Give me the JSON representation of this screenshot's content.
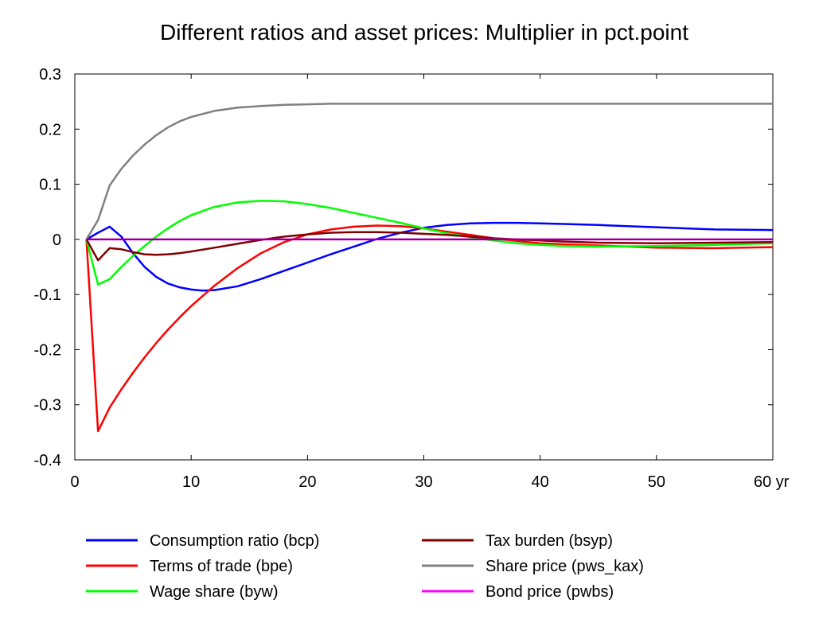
{
  "chart_data": {
    "type": "line",
    "title": "Different ratios and asset prices: Multiplier in pct.point",
    "xlabel": "",
    "ylabel": "",
    "xlim": [
      0,
      60
    ],
    "ylim": [
      -0.4,
      0.3
    ],
    "x_ticks": [
      {
        "value": 0,
        "label": "0"
      },
      {
        "value": 10,
        "label": "10"
      },
      {
        "value": 20,
        "label": "20"
      },
      {
        "value": 30,
        "label": "30"
      },
      {
        "value": 40,
        "label": "40"
      },
      {
        "value": 50,
        "label": "50"
      },
      {
        "value": 60,
        "label": "60 yr"
      }
    ],
    "y_ticks": [
      {
        "value": 0.3,
        "label": "0.3"
      },
      {
        "value": 0.2,
        "label": "0.2"
      },
      {
        "value": 0.1,
        "label": "0.1"
      },
      {
        "value": 0,
        "label": "0"
      },
      {
        "value": -0.1,
        "label": "-0.1"
      },
      {
        "value": -0.2,
        "label": "-0.2"
      },
      {
        "value": -0.3,
        "label": "-0.3"
      },
      {
        "value": -0.4,
        "label": "-0.4"
      }
    ],
    "grid": false,
    "legend_position": "bottom",
    "series": [
      {
        "name": "Consumption ratio (bcp)",
        "color": "#0000ff",
        "points": [
          [
            1,
            0
          ],
          [
            2,
            0.012
          ],
          [
            3,
            0.023
          ],
          [
            4,
            0.005
          ],
          [
            5,
            -0.025
          ],
          [
            6,
            -0.05
          ],
          [
            7,
            -0.068
          ],
          [
            8,
            -0.08
          ],
          [
            9,
            -0.087
          ],
          [
            10,
            -0.091
          ],
          [
            11,
            -0.093
          ],
          [
            12,
            -0.092
          ],
          [
            14,
            -0.085
          ],
          [
            16,
            -0.072
          ],
          [
            18,
            -0.057
          ],
          [
            20,
            -0.042
          ],
          [
            22,
            -0.027
          ],
          [
            24,
            -0.013
          ],
          [
            26,
            0.001
          ],
          [
            28,
            0.012
          ],
          [
            30,
            0.021
          ],
          [
            32,
            0.026
          ],
          [
            34,
            0.029
          ],
          [
            36,
            0.03
          ],
          [
            38,
            0.03
          ],
          [
            40,
            0.029
          ],
          [
            42,
            0.028
          ],
          [
            45,
            0.026
          ],
          [
            50,
            0.022
          ],
          [
            55,
            0.018
          ],
          [
            60,
            0.017
          ]
        ]
      },
      {
        "name": "Terms of trade (bpe)",
        "color": "#ff0000",
        "points": [
          [
            1,
            0
          ],
          [
            2,
            -0.348
          ],
          [
            3,
            -0.305
          ],
          [
            4,
            -0.272
          ],
          [
            5,
            -0.242
          ],
          [
            6,
            -0.214
          ],
          [
            7,
            -0.188
          ],
          [
            8,
            -0.164
          ],
          [
            9,
            -0.142
          ],
          [
            10,
            -0.121
          ],
          [
            12,
            -0.084
          ],
          [
            14,
            -0.052
          ],
          [
            16,
            -0.025
          ],
          [
            18,
            -0.005
          ],
          [
            20,
            0.009
          ],
          [
            22,
            0.018
          ],
          [
            24,
            0.023
          ],
          [
            26,
            0.025
          ],
          [
            28,
            0.024
          ],
          [
            30,
            0.02
          ],
          [
            32,
            0.014
          ],
          [
            34,
            0.008
          ],
          [
            36,
            0.002
          ],
          [
            38,
            -0.003
          ],
          [
            40,
            -0.007
          ],
          [
            42,
            -0.009
          ],
          [
            45,
            -0.011
          ],
          [
            50,
            -0.015
          ],
          [
            55,
            -0.016
          ],
          [
            60,
            -0.014
          ]
        ]
      },
      {
        "name": "Wage share (byw)",
        "color": "#00ff00",
        "points": [
          [
            1,
            0
          ],
          [
            2,
            -0.082
          ],
          [
            3,
            -0.072
          ],
          [
            4,
            -0.05
          ],
          [
            5,
            -0.03
          ],
          [
            6,
            -0.012
          ],
          [
            7,
            0.005
          ],
          [
            8,
            0.02
          ],
          [
            9,
            0.033
          ],
          [
            10,
            0.044
          ],
          [
            12,
            0.059
          ],
          [
            14,
            0.067
          ],
          [
            16,
            0.07
          ],
          [
            18,
            0.069
          ],
          [
            20,
            0.064
          ],
          [
            22,
            0.057
          ],
          [
            24,
            0.048
          ],
          [
            26,
            0.039
          ],
          [
            28,
            0.03
          ],
          [
            30,
            0.02
          ],
          [
            32,
            0.011
          ],
          [
            34,
            0.004
          ],
          [
            36,
            -0.002
          ],
          [
            38,
            -0.007
          ],
          [
            40,
            -0.01
          ],
          [
            42,
            -0.012
          ],
          [
            45,
            -0.013
          ],
          [
            50,
            -0.012
          ],
          [
            55,
            -0.01
          ],
          [
            60,
            -0.007
          ]
        ]
      },
      {
        "name": "Tax burden (bsyp)",
        "color": "#800000",
        "points": [
          [
            1,
            0
          ],
          [
            2,
            -0.038
          ],
          [
            3,
            -0.016
          ],
          [
            4,
            -0.018
          ],
          [
            5,
            -0.023
          ],
          [
            6,
            -0.027
          ],
          [
            7,
            -0.028
          ],
          [
            8,
            -0.027
          ],
          [
            9,
            -0.025
          ],
          [
            10,
            -0.022
          ],
          [
            12,
            -0.015
          ],
          [
            14,
            -0.008
          ],
          [
            16,
            -0.001
          ],
          [
            18,
            0.005
          ],
          [
            20,
            0.009
          ],
          [
            22,
            0.012
          ],
          [
            24,
            0.013
          ],
          [
            26,
            0.013
          ],
          [
            28,
            0.012
          ],
          [
            30,
            0.01
          ],
          [
            32,
            0.008
          ],
          [
            34,
            0.005
          ],
          [
            36,
            0.002
          ],
          [
            38,
            0
          ],
          [
            40,
            -0.002
          ],
          [
            42,
            -0.004
          ],
          [
            45,
            -0.006
          ],
          [
            50,
            -0.007
          ],
          [
            55,
            -0.006
          ],
          [
            60,
            -0.005
          ]
        ]
      },
      {
        "name": "Share price (pws_kax)",
        "color": "#808080",
        "points": [
          [
            1,
            0
          ],
          [
            2,
            0.035
          ],
          [
            3,
            0.098
          ],
          [
            4,
            0.128
          ],
          [
            5,
            0.152
          ],
          [
            6,
            0.172
          ],
          [
            7,
            0.189
          ],
          [
            8,
            0.203
          ],
          [
            9,
            0.214
          ],
          [
            10,
            0.222
          ],
          [
            12,
            0.233
          ],
          [
            14,
            0.239
          ],
          [
            16,
            0.242
          ],
          [
            18,
            0.244
          ],
          [
            20,
            0.245
          ],
          [
            22,
            0.246
          ],
          [
            25,
            0.246
          ],
          [
            30,
            0.246
          ],
          [
            40,
            0.246
          ],
          [
            50,
            0.246
          ],
          [
            60,
            0.246
          ]
        ]
      },
      {
        "name": "Bond price (pwbs)",
        "color": "#ff00ff",
        "points": [
          [
            1,
            0
          ],
          [
            60,
            0
          ]
        ]
      }
    ]
  }
}
